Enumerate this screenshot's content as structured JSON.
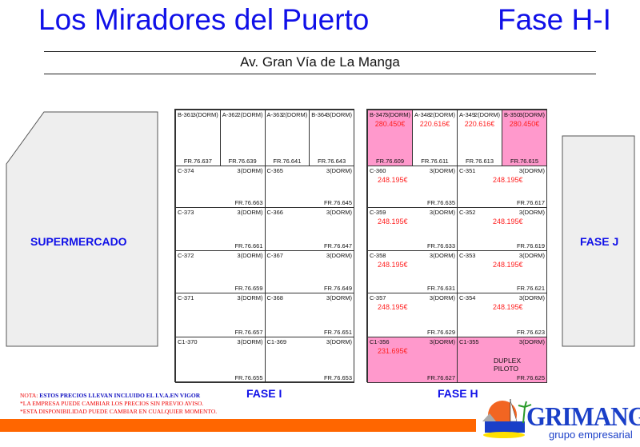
{
  "header": {
    "title": "Los Miradores del Puerto",
    "phase": "Fase H-I",
    "street": "Av. Gran Vía de La Manga"
  },
  "labels": {
    "supermercado": "SUPERMERCADO",
    "fase_j": "FASE J",
    "fase_i": "FASE I",
    "fase_h": "FASE H"
  },
  "colors": {
    "title": "#1010e8",
    "price": "#ff2222",
    "sold_highlight": "#ff99cc",
    "bar": "#ff6600"
  },
  "fase_i": {
    "top": [
      {
        "id": "B-361",
        "dorm": "3(DORM)",
        "fr": "FR.76.637"
      },
      {
        "id": "A-362",
        "dorm": "2(DORM)",
        "fr": "FR.76.639"
      },
      {
        "id": "A-363",
        "dorm": "2(DORM)",
        "fr": "FR.76.641"
      },
      {
        "id": "B-364",
        "dorm": "3(DORM)",
        "fr": "FR.76.643"
      }
    ],
    "rows": [
      [
        {
          "id": "C-374",
          "dorm": "3(DORM)",
          "fr": "FR.76.663"
        },
        {
          "id": "C-365",
          "dorm": "3(DORM)",
          "fr": "FR.76.645"
        }
      ],
      [
        {
          "id": "C-373",
          "dorm": "3(DORM)",
          "fr": "FR.76.661"
        },
        {
          "id": "C-366",
          "dorm": "3(DORM)",
          "fr": "FR.76.647"
        }
      ],
      [
        {
          "id": "C-372",
          "dorm": "3(DORM)",
          "fr": "FR.76.659"
        },
        {
          "id": "C-367",
          "dorm": "3(DORM)",
          "fr": "FR.76.649"
        }
      ],
      [
        {
          "id": "C-371",
          "dorm": "3(DORM)",
          "fr": "FR.76.657"
        },
        {
          "id": "C-368",
          "dorm": "3(DORM)",
          "fr": "FR.76.651"
        }
      ],
      [
        {
          "id": "C1-370",
          "dorm": "3(DORM)",
          "fr": "FR.76.655"
        },
        {
          "id": "C1-369",
          "dorm": "3(DORM)",
          "fr": "FR.76.653"
        }
      ]
    ]
  },
  "fase_h": {
    "top": [
      {
        "id": "B-347",
        "dorm": "3(DORM)",
        "fr": "FR.76.609",
        "price": "280.450€",
        "pink": true
      },
      {
        "id": "A-348",
        "dorm": "2(DORM)",
        "fr": "FR.76.611",
        "price": "220.616€"
      },
      {
        "id": "A-349",
        "dorm": "2(DORM)",
        "fr": "FR.76.613",
        "price": "220.616€"
      },
      {
        "id": "B-350",
        "dorm": "3(DORM)",
        "fr": "FR.76.615",
        "price": "280.450€",
        "pink": true
      }
    ],
    "rows": [
      [
        {
          "id": "C-360",
          "dorm": "3(DORM)",
          "fr": "FR.76.635",
          "price": "248.195€"
        },
        {
          "id": "C-351",
          "dorm": "3(DORM)",
          "fr": "FR.76.617",
          "price": "248.195€"
        }
      ],
      [
        {
          "id": "C-359",
          "dorm": "3(DORM)",
          "fr": "FR.76.633",
          "price": "248.195€"
        },
        {
          "id": "C-352",
          "dorm": "3(DORM)",
          "fr": "FR.76.619",
          "price": "248.195€"
        }
      ],
      [
        {
          "id": "C-358",
          "dorm": "3(DORM)",
          "fr": "FR.76.631",
          "price": "248.195€"
        },
        {
          "id": "C-353",
          "dorm": "3(DORM)",
          "fr": "FR.76.621",
          "price": "248.195€"
        }
      ],
      [
        {
          "id": "C-357",
          "dorm": "3(DORM)",
          "fr": "FR.76.629",
          "price": "248.195€"
        },
        {
          "id": "C-354",
          "dorm": "3(DORM)",
          "fr": "FR.76.623",
          "price": "248.195€"
        }
      ],
      [
        {
          "id": "C1-356",
          "dorm": "3(DORM)",
          "fr": "FR.76.627",
          "price": "231.695€",
          "pink": true
        },
        {
          "id": "C1-355",
          "dorm": "3(DORM)",
          "fr": "FR.76.625",
          "note": "DUPLEX PILOTO",
          "pink": true
        }
      ]
    ]
  },
  "notes": {
    "line1_prefix": "NOTA:",
    "line1": "ESTOS PRECIOS LLEVAN INCLUIDO EL I.V.A.EN VIGOR",
    "line2": "*LA EMPRESA PUEDE CAMBIAR LOS PRECIOS SIN PREVIO AVISO.",
    "line3": "*ESTA DISPONIBILIDAD PUEDE CAMBIAR EN CUALQUIER MOMENTO."
  },
  "logo": {
    "name": "GRIMANGA",
    "tagline": "grupo empresarial"
  }
}
